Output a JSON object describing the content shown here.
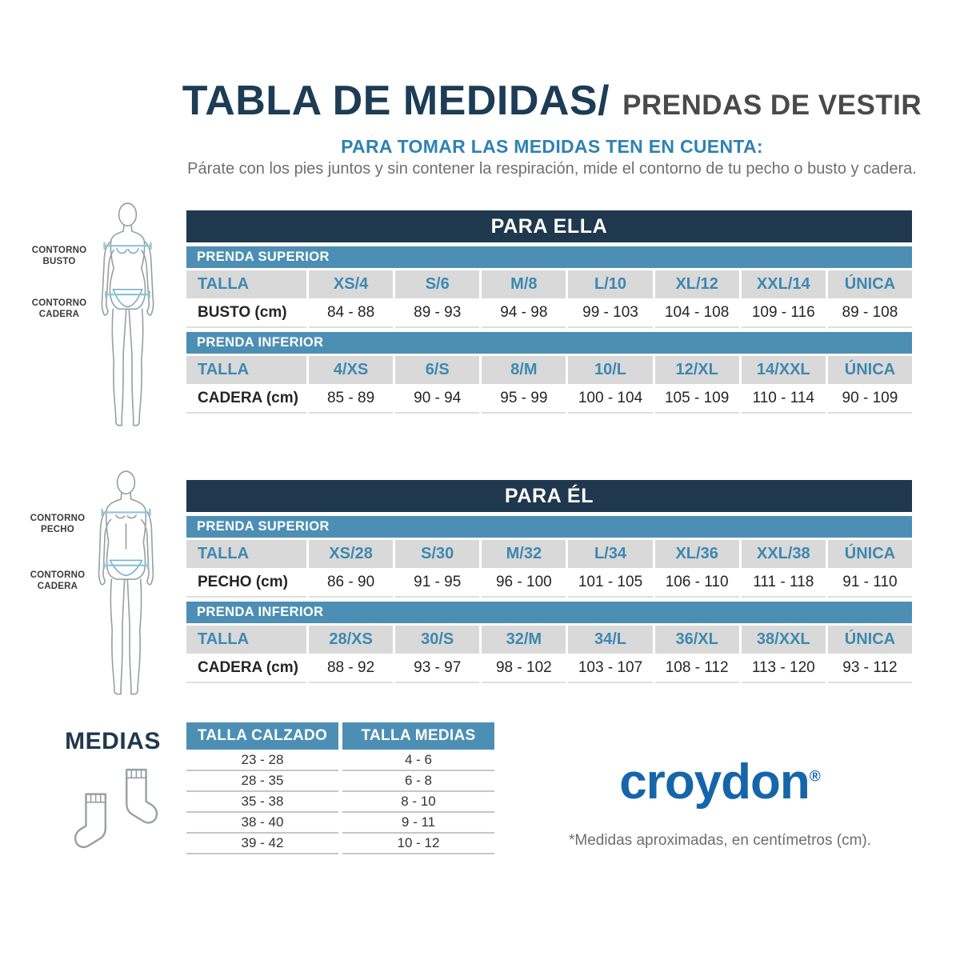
{
  "header": {
    "title_main": "TABLA DE MEDIDAS/",
    "title_sub": "PRENDAS DE VESTIR",
    "instructions_heading": "PARA TOMAR LAS MEDIDAS TEN EN CUENTA:",
    "instructions_text": "Párate con los pies juntos y sin contener la respiración, mide el contorno de tu pecho o busto y cadera."
  },
  "figures": {
    "female": {
      "bust_label": "CONTORNO\nBUSTO",
      "hip_label": "CONTORNO\nCADERA"
    },
    "male": {
      "chest_label": "CONTORNO\nPECHO",
      "hip_label": "CONTORNO\nCADERA"
    }
  },
  "tables": {
    "ella": {
      "title": "PARA ELLA",
      "sections": [
        {
          "label": "PRENDA SUPERIOR",
          "size_label": "TALLA",
          "sizes": [
            "XS/4",
            "S/6",
            "M/8",
            "L/10",
            "XL/12",
            "XXL/14",
            "ÚNICA"
          ],
          "measure_label": "BUSTO (cm)",
          "values": [
            "84 - 88",
            "89 - 93",
            "94 - 98",
            "99 - 103",
            "104 - 108",
            "109 - 116",
            "89 - 108"
          ]
        },
        {
          "label": "PRENDA INFERIOR",
          "size_label": "TALLA",
          "sizes": [
            "4/XS",
            "6/S",
            "8/M",
            "10/L",
            "12/XL",
            "14/XXL",
            "ÚNICA"
          ],
          "measure_label": "CADERA (cm)",
          "values": [
            "85 - 89",
            "90 - 94",
            "95 - 99",
            "100 - 104",
            "105 - 109",
            "110 - 114",
            "90 - 109"
          ]
        }
      ]
    },
    "el": {
      "title": "PARA ÉL",
      "sections": [
        {
          "label": "PRENDA SUPERIOR",
          "size_label": "TALLA",
          "sizes": [
            "XS/28",
            "S/30",
            "M/32",
            "L/34",
            "XL/36",
            "XXL/38",
            "ÚNICA"
          ],
          "measure_label": "PECHO (cm)",
          "values": [
            "86 - 90",
            "91 - 95",
            "96 - 100",
            "101 - 105",
            "106 - 110",
            "111 - 118",
            "91 - 110"
          ]
        },
        {
          "label": "PRENDA INFERIOR",
          "size_label": "TALLA",
          "sizes": [
            "28/XS",
            "30/S",
            "32/M",
            "34/L",
            "36/XL",
            "38/XXL",
            "ÚNICA"
          ],
          "measure_label": "CADERA (cm)",
          "values": [
            "88 - 92",
            "93 - 97",
            "98 - 102",
            "103 - 107",
            "108 - 112",
            "113 - 120",
            "93 - 112"
          ]
        }
      ]
    },
    "medias": {
      "heading": "MEDIAS",
      "headers": [
        "TALLA CALZADO",
        "TALLA MEDIAS"
      ],
      "rows": [
        [
          "23 - 28",
          "4 - 6"
        ],
        [
          "28 - 35",
          "6 - 8"
        ],
        [
          "35 - 38",
          "8 - 10"
        ],
        [
          "38 - 40",
          "9 - 11"
        ],
        [
          "39 - 42",
          "10 - 12"
        ]
      ]
    }
  },
  "brand": {
    "name": "croydon",
    "registered": "®"
  },
  "footer": {
    "note": "*Medidas aproximadas, en centímetros (cm)."
  },
  "colors": {
    "navy": "#20384e",
    "bar_blue": "#4d8fb4",
    "accent_text_blue": "#3e88b1",
    "brand_blue": "#1565ab",
    "row_gray": "#d9d9d9"
  }
}
